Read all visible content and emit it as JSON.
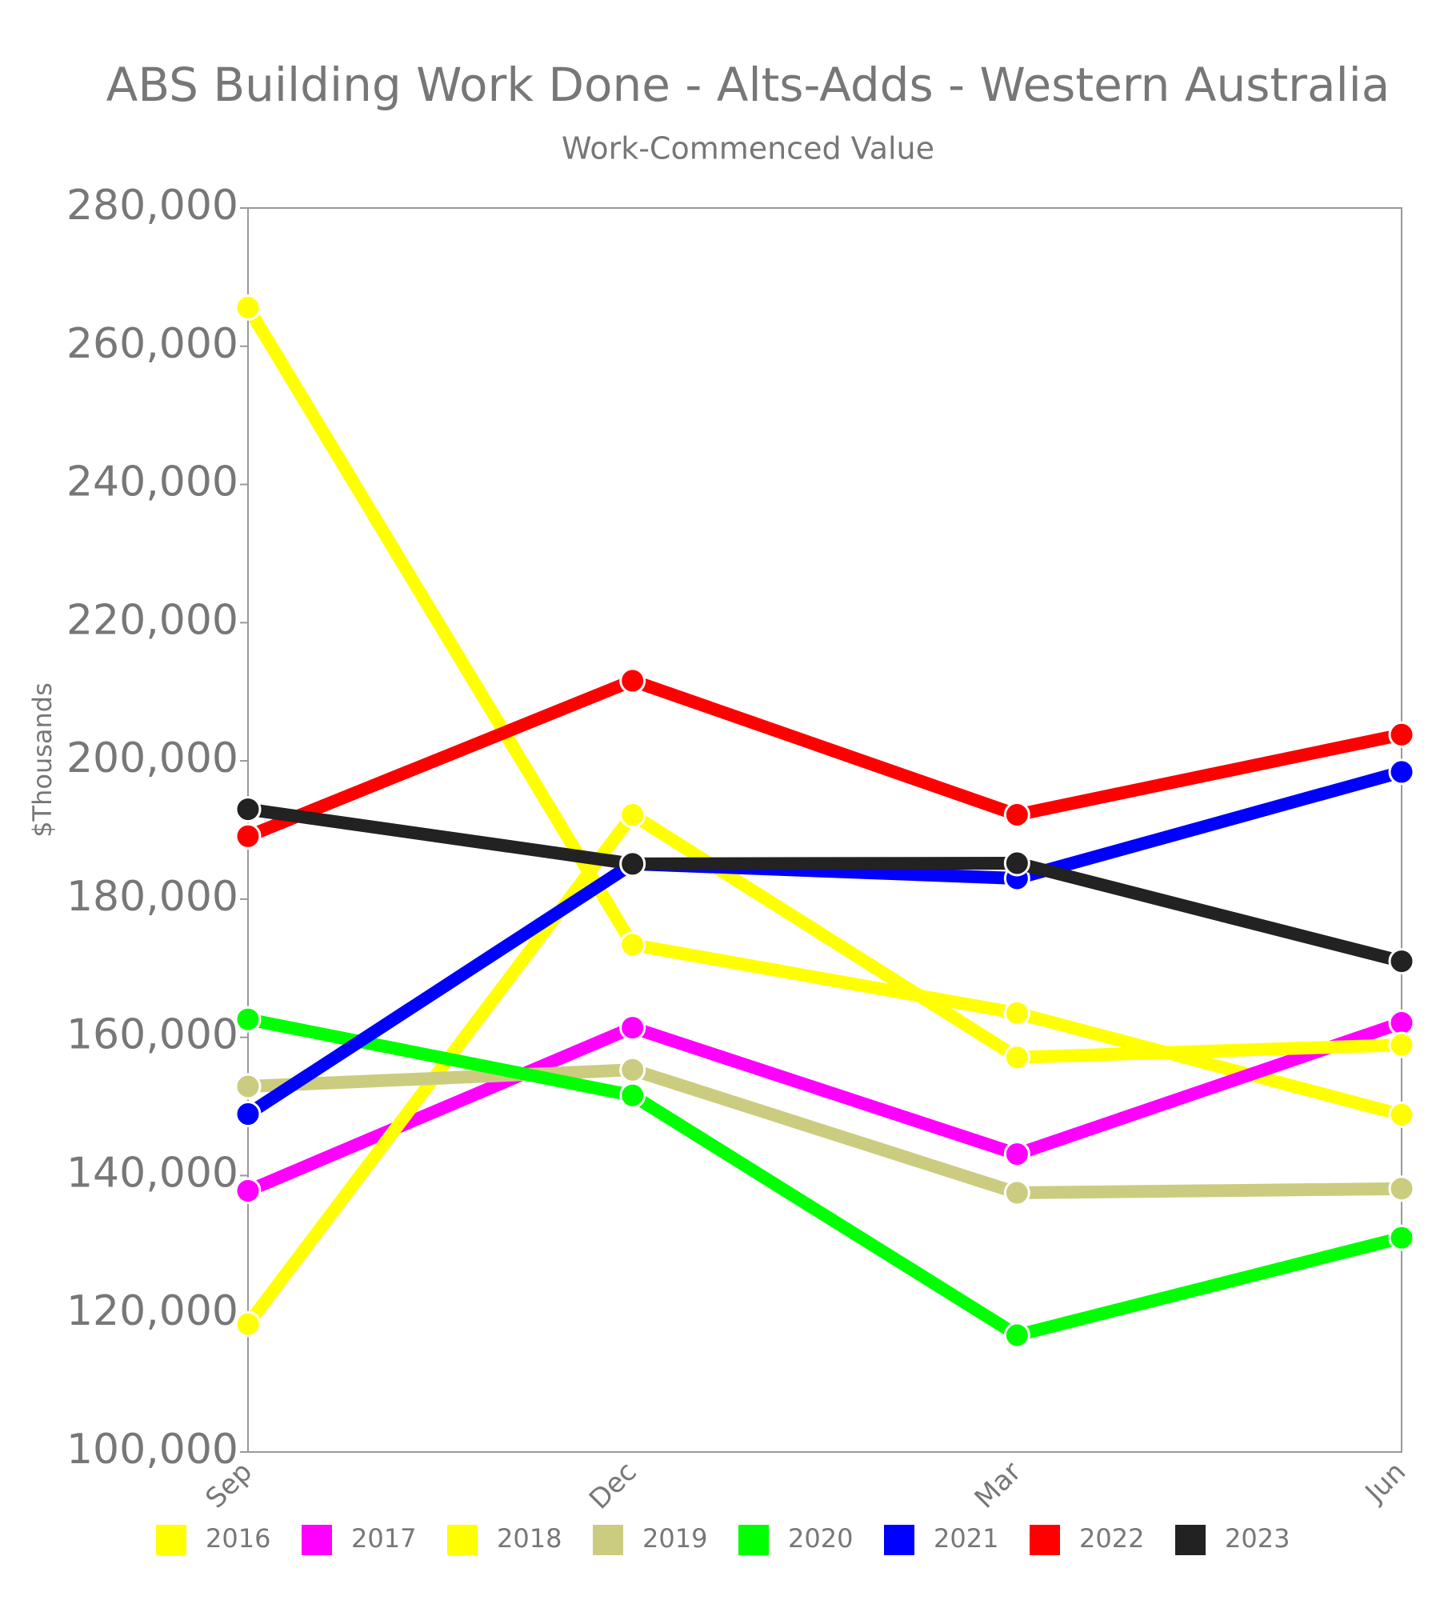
{
  "chart_data": {
    "type": "line",
    "title": "ABS Building Work Done - Alts-Adds - Western Australia",
    "subtitle": "Work-Commenced Value",
    "y_label": "$Thousands",
    "categories": [
      "Sep",
      "Dec",
      "Mar",
      "Jun"
    ],
    "ylim": [
      100000,
      280000
    ],
    "yticks": [
      {
        "value": 100000,
        "label": "100,000"
      },
      {
        "value": 120000,
        "label": "120,000"
      },
      {
        "value": 140000,
        "label": "140,000"
      },
      {
        "value": 160000,
        "label": "160,000"
      },
      {
        "value": 180000,
        "label": "180,000"
      },
      {
        "value": 200000,
        "label": "200,000"
      },
      {
        "value": 220000,
        "label": "220,000"
      },
      {
        "value": 240000,
        "label": "240,000"
      },
      {
        "value": 260000,
        "label": "260,000"
      },
      {
        "value": 280000,
        "label": "280,000"
      }
    ],
    "legend": "bottom",
    "series": [
      {
        "name": "2016",
        "color": "#ffff00",
        "values": [
          265600,
          173400,
          163500,
          148800
        ]
      },
      {
        "name": "2017",
        "color": "#ff00ff",
        "values": [
          137800,
          161400,
          143100,
          162100
        ]
      },
      {
        "name": "2018",
        "color": "#ffff00",
        "values": [
          118500,
          192200,
          157100,
          158900
        ]
      },
      {
        "name": "2019",
        "color": "#cccc80",
        "values": [
          152900,
          155300,
          137500,
          138100
        ]
      },
      {
        "name": "2020",
        "color": "#00ff00",
        "values": [
          162600,
          151600,
          116900,
          131000
        ]
      },
      {
        "name": "2021",
        "color": "#0000ff",
        "values": [
          148900,
          185100,
          183000,
          198400
        ]
      },
      {
        "name": "2022",
        "color": "#ff0000",
        "values": [
          189100,
          211600,
          192200,
          203800
        ]
      },
      {
        "name": "2023",
        "color": "#222222",
        "values": [
          193000,
          185100,
          185200,
          171000
        ]
      }
    ]
  }
}
